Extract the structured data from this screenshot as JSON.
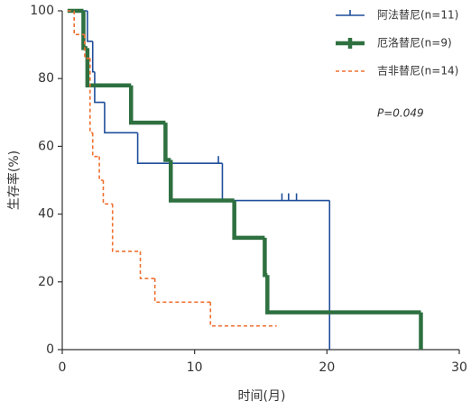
{
  "chart_data": {
    "type": "step",
    "xlabel": "时间(月)",
    "ylabel": "生存率(%)",
    "annotation": "P=0.049",
    "xlim": [
      0,
      30
    ],
    "ylim": [
      0,
      100
    ],
    "xticks": [
      0,
      10,
      20,
      30
    ],
    "yticks": [
      0,
      20,
      40,
      60,
      80,
      100
    ],
    "series": [
      {
        "name": "阿法替尼(n=11)",
        "color": "#1f4e9a",
        "dashed": false,
        "x": [
          0.4,
          1.9,
          2.3,
          2.45,
          3.2,
          5.7,
          12.1,
          20.2
        ],
        "values": [
          100,
          91,
          82,
          73,
          64,
          55,
          44,
          0
        ],
        "censor_x": [
          11.8,
          16.6,
          17.1,
          17.7
        ],
        "censor_values": [
          55,
          44,
          44,
          44
        ]
      },
      {
        "name": "厄洛替尼(n=9)",
        "color": "#2e7040",
        "dashed": false,
        "x": [
          0.4,
          1.6,
          1.9,
          5.2,
          7.8,
          8.2,
          13,
          15.3,
          15.5,
          27.1
        ],
        "values": [
          100,
          89,
          78,
          67,
          56,
          44,
          33,
          22,
          11,
          0
        ],
        "censor_x": [],
        "censor_values": []
      },
      {
        "name": "吉非替尼(n=14)",
        "color": "#f07030",
        "dashed": true,
        "x": [
          0.4,
          0.9,
          1.7,
          2.1,
          2.3,
          2.8,
          3.1,
          3.8,
          5.9,
          7.0,
          11.2,
          16.2
        ],
        "values": [
          100,
          93,
          86,
          64,
          57,
          50,
          43,
          29,
          21,
          14,
          7,
          7
        ],
        "censor_x": [],
        "censor_values": []
      }
    ]
  }
}
